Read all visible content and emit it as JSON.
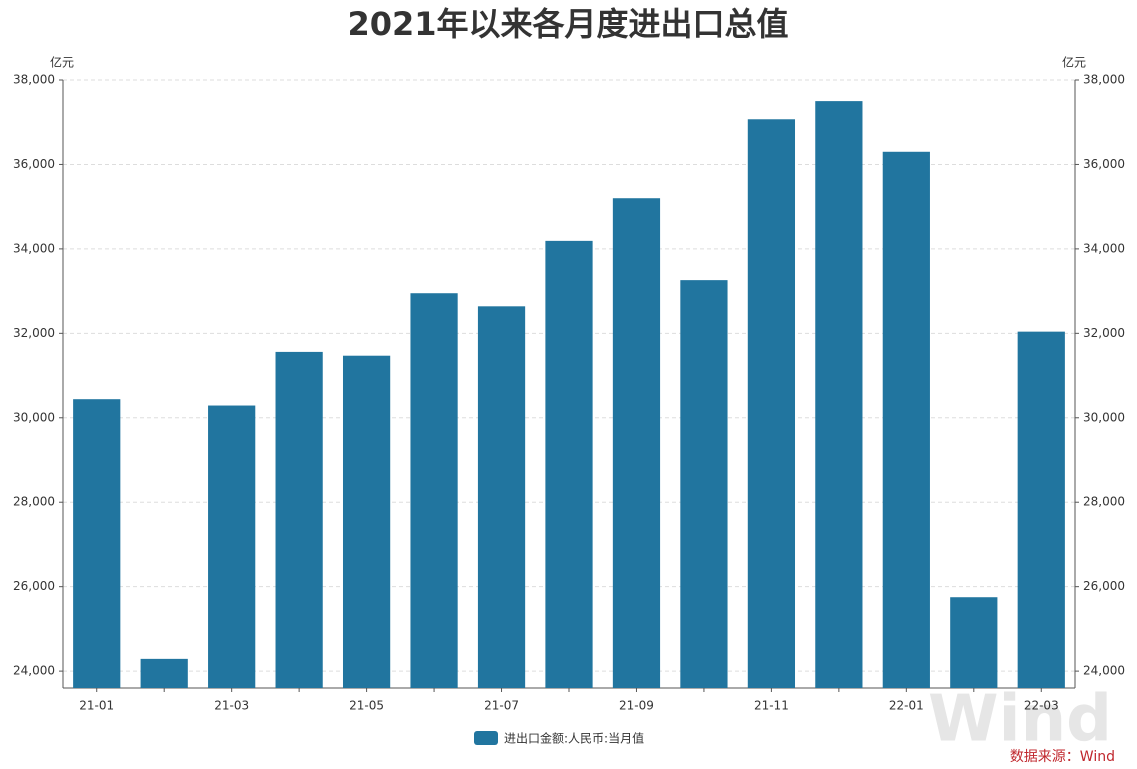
{
  "chart_data": {
    "type": "bar",
    "title": "2021年以来各月度进出口总值",
    "y_unit": "亿元",
    "y2_unit": "亿元",
    "categories": [
      "21-01",
      null,
      "21-03",
      null,
      "21-05",
      null,
      "21-07",
      null,
      "21-09",
      null,
      "21-11",
      null,
      "22-01",
      null,
      "22-03"
    ],
    "series": [
      {
        "name": "进出口金额:人民币:当月值",
        "color": "#21759f",
        "values": [
          30440,
          24290,
          30290,
          31560,
          31470,
          32950,
          32640,
          34190,
          35200,
          33260,
          37070,
          37500,
          36300,
          25750,
          32040
        ]
      }
    ],
    "ylim": [
      23600,
      38000
    ],
    "yticks": [
      {
        "value": 24000,
        "label": "24,000"
      },
      {
        "value": 26000,
        "label": "26,000"
      },
      {
        "value": 28000,
        "label": "28,000"
      },
      {
        "value": 30000,
        "label": "30,000"
      },
      {
        "value": 32000,
        "label": "32,000"
      },
      {
        "value": 34000,
        "label": "34,000"
      },
      {
        "value": 36000,
        "label": "36,000"
      },
      {
        "value": 38000,
        "label": "38,000"
      }
    ],
    "y2lim": [
      23600,
      38000
    ],
    "y2ticks": [
      {
        "value": 24000,
        "label": "24,000"
      },
      {
        "value": 26000,
        "label": "26,000"
      },
      {
        "value": 28000,
        "label": "28,000"
      },
      {
        "value": 30000,
        "label": "30,000"
      },
      {
        "value": 32000,
        "label": "32,000"
      },
      {
        "value": 34000,
        "label": "34,000"
      },
      {
        "value": 36000,
        "label": "36,000"
      },
      {
        "value": 38000,
        "label": "38,000"
      }
    ],
    "grid": true,
    "source": "数据来源：Wind",
    "watermark": "Wind"
  }
}
